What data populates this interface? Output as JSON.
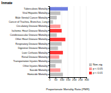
{
  "chart_data": {
    "type": "bar",
    "orientation": "horizontal",
    "title": "Inmate",
    "x_label": "Proportionate Mortality Ratio (PMR)",
    "categories": [
      "Tuberculosis Mortality",
      "Viral Hepatitis Mortality",
      "Male Genital Cancer Mortality",
      "Cancer of Trachea, Bronchus, Lung",
      "Circulatory Disease Mortality",
      "Ischemic Heart Disease Mortality",
      "Cerebrovascular Disease Mortality",
      "Other Heart Disease Mortality",
      "Respiratory Disease Mortality",
      "Digestive Disease Mortality",
      "Liver Cirrhosis Mortality",
      "Renal Disease Mortality",
      "Transportation Injuries Mortality",
      "Other Injuries Mortality",
      "Suicide Mortality",
      "Homicide Mortality"
    ],
    "series": [
      {
        "name": "Non-sig",
        "color": "#c0c0c0",
        "values": [
          null,
          90,
          60,
          30,
          null,
          null,
          60,
          null,
          100,
          70,
          null,
          null,
          100,
          50,
          null,
          110
        ]
      },
      {
        "name": "p < 0.05",
        "color": "#ff9999",
        "values": [
          null,
          null,
          null,
          null,
          90,
          null,
          null,
          null,
          null,
          null,
          null,
          80,
          null,
          null,
          90,
          null
        ]
      },
      {
        "name": "p < 0.01",
        "color": "#ff3333",
        "colors": [
          "#6f7fe0",
          "#ff3333",
          "#ff3333",
          "#ff3333",
          "#ff3333",
          "#ff3333",
          "#ff3333",
          "#ff3333",
          "#ff3333",
          "#ff3333",
          "#ff3333",
          "#ff3333",
          "#ff3333",
          "#ff3333",
          "#ff3333",
          "#ff3333"
        ],
        "values": [
          150,
          null,
          null,
          null,
          null,
          100,
          null,
          130,
          null,
          null,
          110,
          null,
          null,
          null,
          null,
          null
        ]
      }
    ],
    "xlim": [
      0,
      300
    ],
    "xticks": [
      0,
      50,
      100,
      150,
      200,
      250,
      300
    ],
    "legend": "lower right"
  }
}
